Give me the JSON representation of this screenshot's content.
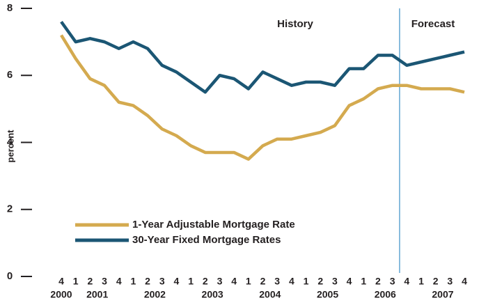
{
  "chart_data": {
    "type": "line",
    "y_label": "percent",
    "annotations": [
      "History",
      "Forecast"
    ],
    "categories": [
      "4",
      "1",
      "2",
      "3",
      "4",
      "1",
      "2",
      "3",
      "4",
      "1",
      "2",
      "3",
      "4",
      "1",
      "2",
      "3",
      "4",
      "1",
      "2",
      "3",
      "4",
      "1",
      "2",
      "3",
      "4",
      "1",
      "2",
      "3",
      "4"
    ],
    "years": [
      "2000",
      "2001",
      "2002",
      "2003",
      "2004",
      "2005",
      "2006",
      "2007"
    ],
    "series": [
      {
        "name": "1-Year Adjustable Mortgage Rate",
        "color": "#d4aa4f",
        "values": [
          7.2,
          6.5,
          5.9,
          5.7,
          5.2,
          5.1,
          4.8,
          4.4,
          4.2,
          3.9,
          3.7,
          3.7,
          3.7,
          3.5,
          3.9,
          4.1,
          4.1,
          4.2,
          4.3,
          4.5,
          5.1,
          5.3,
          5.6,
          5.7,
          5.7,
          5.6,
          5.6,
          5.6,
          5.5
        ]
      },
      {
        "name": "30-Year Fixed Mortgage Rates",
        "color": "#1b5674",
        "values": [
          7.6,
          7.0,
          7.1,
          7.0,
          6.8,
          7.0,
          6.8,
          6.3,
          6.1,
          5.8,
          5.5,
          6.0,
          5.9,
          5.6,
          6.1,
          5.9,
          5.7,
          5.8,
          5.8,
          5.7,
          6.2,
          6.2,
          6.6,
          6.6,
          6.3,
          6.4,
          6.5,
          6.6,
          6.7
        ]
      }
    ],
    "ylim": [
      0,
      8
    ],
    "yticks": [
      0,
      2,
      4,
      6,
      8
    ],
    "grid": false
  }
}
